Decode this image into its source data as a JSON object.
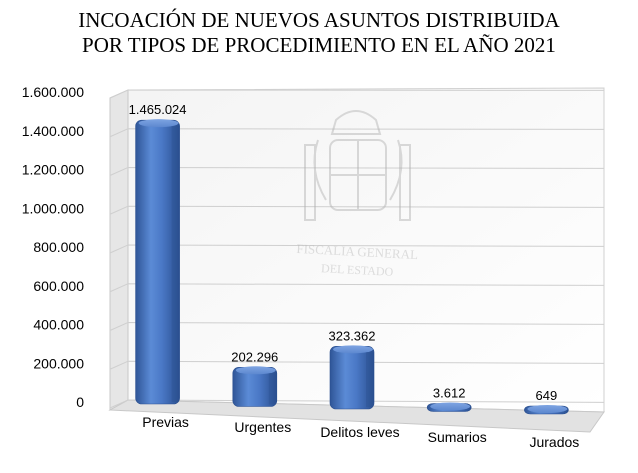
{
  "chart_data": {
    "type": "bar",
    "title_line1": "INCOACIÓN DE NUEVOS ASUNTOS DISTRIBUIDA",
    "title_line2": "POR TIPOS DE PROCEDIMIENTO EN EL AÑO 2021",
    "categories": [
      "Previas",
      "Urgentes",
      "Delitos leves",
      "Sumarios",
      "Jurados"
    ],
    "values": [
      1465024,
      202296,
      323362,
      3612,
      649
    ],
    "value_labels": [
      "1.465.024",
      "202.296",
      "323.362",
      "3.612",
      "649"
    ],
    "ylim": [
      0,
      1600000
    ],
    "y_ticks": [
      0,
      200000,
      400000,
      600000,
      800000,
      1000000,
      1200000,
      1400000,
      1600000
    ],
    "y_tick_labels": [
      "0",
      "200.000",
      "400.000",
      "600.000",
      "800.000",
      "1.000.000",
      "1.200.000",
      "1.400.000",
      "1.600.000"
    ],
    "grid": true,
    "legend": "none",
    "bar_color": "#4472c4",
    "watermark_line1": "FISCALIA GENERAL",
    "watermark_line2": "DEL ESTADO"
  }
}
